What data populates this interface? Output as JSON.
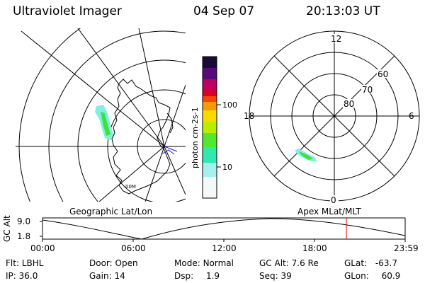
{
  "header": {
    "instrument": "Ultraviolet Imager",
    "date": "04 Sep 07",
    "time": "20:13:03 UT"
  },
  "colorbar": {
    "unit_label": "photon cm-2s-1",
    "ticks": [
      "100",
      "10"
    ],
    "colors": [
      "#1a0a3a",
      "#5a0a78",
      "#c0005a",
      "#e00018",
      "#f04a00",
      "#f59a00",
      "#f8dc00",
      "#b8ee00",
      "#50e830",
      "#30e8b0",
      "#a8f0f0",
      "#f4f8f8"
    ]
  },
  "maps": {
    "left_label": "Geographic Lat/Lon",
    "right_label": "Apex MLat/MLT",
    "polar_labels": {
      "top": "12",
      "left": "18",
      "right": "6",
      "bottom": "0",
      "lat60": "60",
      "lat70": "70",
      "lat80": "80"
    },
    "mini_label": "00M"
  },
  "altitude_plot": {
    "ylabel": "GC Alt",
    "yticks": [
      "9.0",
      "1.8"
    ],
    "xticks": [
      "00:00",
      "06:00",
      "12:00",
      "18:00",
      "23:59"
    ],
    "marker_color": "#e00000"
  },
  "footer": {
    "row1": [
      {
        "label": "Flt:",
        "value": "LBHL"
      },
      {
        "label": "Door:",
        "value": "Open"
      },
      {
        "label": "Mode:",
        "value": "Normal"
      },
      {
        "label": "GC Alt:",
        "value": "7.6 Re"
      },
      {
        "label": "GLat:",
        "value": "-63.7"
      }
    ],
    "row2": [
      {
        "label": "IP:",
        "value": "36.0"
      },
      {
        "label": "Gain:",
        "value": "14"
      },
      {
        "label": "Dsp:",
        "value": "1.9"
      },
      {
        "label": "Seq:",
        "value": "39"
      },
      {
        "label": "GLon:",
        "value": "60.9"
      }
    ]
  }
}
